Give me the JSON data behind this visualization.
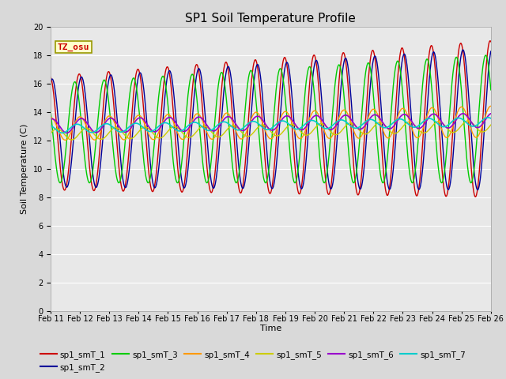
{
  "title": "SP1 Soil Temperature Profile",
  "xlabel": "Time",
  "ylabel": "Soil Temperature (C)",
  "ylim": [
    0,
    20
  ],
  "x_tick_labels": [
    "Feb 11",
    "Feb 12",
    "Feb 13",
    "Feb 14",
    "Feb 15",
    "Feb 16",
    "Feb 17",
    "Feb 18",
    "Feb 19",
    "Feb 20",
    "Feb 21",
    "Feb 22",
    "Feb 23",
    "Feb 24",
    "Feb 25",
    "Feb 26"
  ],
  "annotation_text": "TZ_osu",
  "annotation_color": "#cc0000",
  "annotation_bg": "#ffffcc",
  "annotation_border": "#999900",
  "series_colors": {
    "sp1_smT_1": "#cc0000",
    "sp1_smT_2": "#000099",
    "sp1_smT_3": "#00cc00",
    "sp1_smT_4": "#ff9900",
    "sp1_smT_5": "#cccc00",
    "sp1_smT_6": "#9900cc",
    "sp1_smT_7": "#00cccc"
  },
  "background_color": "#d9d9d9",
  "plot_bg_color": "#e8e8e8",
  "title_fontsize": 11,
  "axis_fontsize": 8,
  "tick_fontsize": 7
}
